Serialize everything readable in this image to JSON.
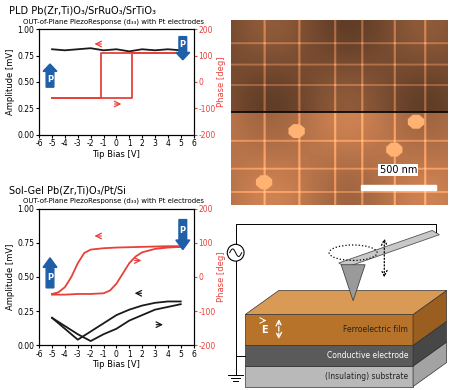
{
  "chart_data": [
    {
      "type": "line",
      "title": "PLD Pb(Zr,Ti)O₃/SrRuO₃/SrTiO₃",
      "subtitle": "OUT-of-Plane PiezoResponse (d₃₃) with Pt electrodes",
      "x_label": "Tip Bias [V]",
      "y_label": "Amplitude [mV]",
      "y2_label": "Phase [deg]",
      "xlim": [
        -6,
        6
      ],
      "xticks": [
        -6,
        -5,
        -4,
        -3,
        -2,
        -1,
        0,
        1,
        2,
        3,
        4,
        5,
        6
      ],
      "ylim": [
        0,
        1
      ],
      "yticks": [
        {
          "value": 0,
          "label": "0.00"
        },
        {
          "value": 0.25,
          "label": "0.25"
        },
        {
          "value": 0.5,
          "label": "0.50"
        },
        {
          "value": 0.75,
          "label": "0.75"
        },
        {
          "value": 1,
          "label": "1.00"
        }
      ],
      "y2lim": [
        -200,
        200
      ],
      "y2ticks": [
        -200,
        -100,
        0,
        100,
        200
      ],
      "series": [
        {
          "color": "#1a1a1a",
          "axis": "y",
          "x": [
            -5,
            -4,
            -3,
            -2,
            -1,
            0,
            1,
            2,
            3,
            4,
            5
          ],
          "values": [
            0.81,
            0.8,
            0.81,
            0.82,
            0.8,
            0.81,
            0.79,
            0.81,
            0.8,
            0.81,
            0.8
          ]
        },
        {
          "color": "#e8403a",
          "axis": "y2",
          "x": [
            -5,
            -4,
            -3,
            -2,
            -1,
            0,
            1,
            1.2,
            1.2,
            2,
            3,
            4,
            5,
            5,
            4,
            3,
            2,
            1,
            0,
            -1,
            -1.2,
            -1.2,
            -2,
            -3,
            -4,
            -5
          ],
          "values": [
            -60,
            -60,
            -60,
            -60,
            -60,
            -60,
            -60,
            -60,
            110,
            110,
            110,
            110,
            110,
            110,
            110,
            110,
            110,
            110,
            110,
            110,
            110,
            -60,
            -60,
            -60,
            -60,
            -60
          ]
        }
      ],
      "annotations": [
        {
          "text": "P"
        },
        {
          "text": "P"
        }
      ]
    },
    {
      "type": "line",
      "title": "Sol-Gel Pb(Zr,Ti)O₃/Pt/Si",
      "subtitle": "OUT-of-Plane PiezoResponse (d₃₃) with Pt electrodes",
      "x_label": "Tip Bias [V]",
      "y_label": "Amplitude [mV]",
      "y2_label": "Phase [deg]",
      "xlim": [
        -6,
        6
      ],
      "xticks": [
        -6,
        -5,
        -4,
        -3,
        -2,
        -1,
        0,
        1,
        2,
        3,
        4,
        5,
        6
      ],
      "ylim": [
        0,
        1
      ],
      "yticks": [
        {
          "value": 0,
          "label": "0.00"
        },
        {
          "value": 0.25,
          "label": "0.25"
        },
        {
          "value": 0.5,
          "label": "0.50"
        },
        {
          "value": 0.75,
          "label": "0.75"
        },
        {
          "value": 1,
          "label": "1.00"
        }
      ],
      "y2lim": [
        -200,
        200
      ],
      "y2ticks": [
        -200,
        -100,
        0,
        100,
        200
      ],
      "series": [
        {
          "color": "#1a1a1a",
          "axis": "y",
          "x": [
            -5,
            -4,
            -3,
            -2,
            -1,
            0,
            1,
            2,
            3,
            4,
            5
          ],
          "values": [
            0.2,
            0.14,
            0.08,
            0.03,
            0.08,
            0.12,
            0.18,
            0.22,
            0.26,
            0.28,
            0.3
          ]
        },
        {
          "color": "#1a1a1a",
          "axis": "y",
          "x": [
            5,
            4,
            3,
            2,
            1,
            0,
            -1,
            -2,
            -3,
            -4,
            -5
          ],
          "values": [
            0.32,
            0.32,
            0.31,
            0.29,
            0.26,
            0.22,
            0.16,
            0.1,
            0.04,
            0.12,
            0.2
          ]
        },
        {
          "color": "#e8403a",
          "axis": "y2",
          "x": [
            -5,
            -4,
            -3,
            -2,
            -1,
            -0.5,
            0,
            0.5,
            1,
            1.5,
            2,
            3,
            4,
            5,
            5,
            4,
            3,
            2,
            1,
            0,
            -1,
            -2,
            -2.5,
            -3,
            -3.5,
            -4,
            -4.5,
            -5
          ],
          "values": [
            -52,
            -52,
            -50,
            -50,
            -48,
            -40,
            -20,
            10,
            40,
            60,
            72,
            82,
            86,
            88,
            90,
            90,
            89,
            88,
            87,
            86,
            84,
            80,
            70,
            40,
            0,
            -30,
            -45,
            -50
          ]
        }
      ],
      "annotations": [
        {
          "text": "P"
        },
        {
          "text": "P"
        }
      ]
    }
  ],
  "image": {
    "scale_bar": "500 nm"
  },
  "diagram": {
    "layers": [
      "Ferroelectric film",
      "Conductive electrode",
      "(Insulating) substrate"
    ],
    "field_label": "E"
  }
}
